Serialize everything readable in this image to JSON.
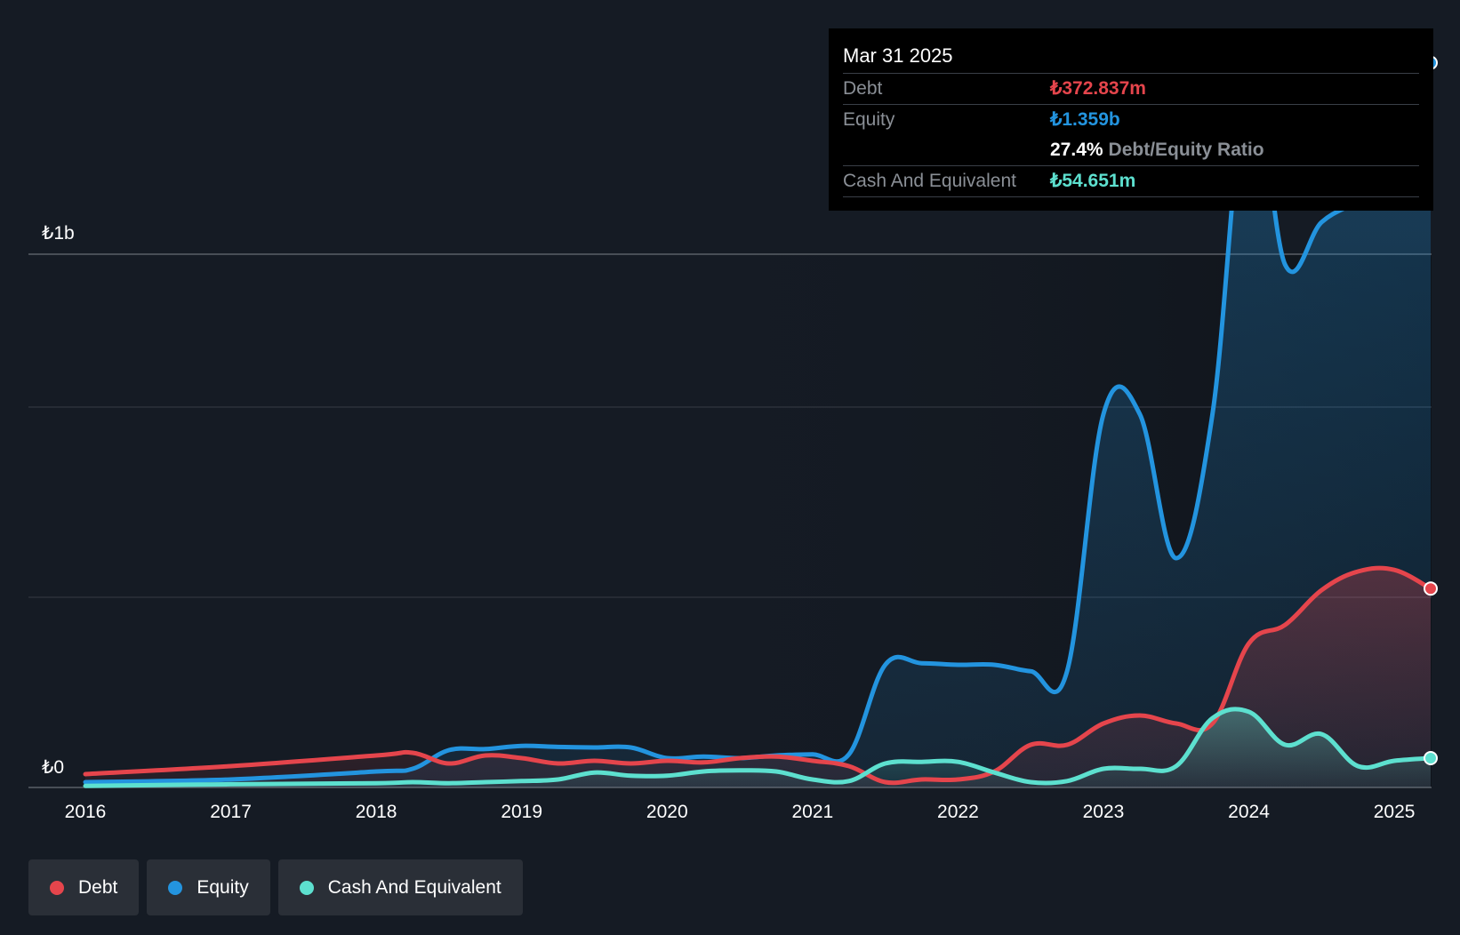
{
  "tooltip": {
    "date": "Mar 31 2025",
    "debt_label": "Debt",
    "debt_value": "₺372.837m",
    "equity_label": "Equity",
    "equity_value": "₺1.359b",
    "ratio_value": "27.4%",
    "ratio_label": "Debt/Equity Ratio",
    "cash_label": "Cash And Equivalent",
    "cash_value": "₺54.651m"
  },
  "legend": [
    {
      "label": "Debt",
      "color": "#e5454c"
    },
    {
      "label": "Equity",
      "color": "#2394df"
    },
    {
      "label": "Cash And Equivalent",
      "color": "#5de0cf"
    }
  ],
  "colors": {
    "debt": "#e5454c",
    "equity": "#2394df",
    "cash": "#5de0cf",
    "background": "#151b24"
  },
  "chart_data": {
    "type": "area",
    "title": "",
    "xlabel": "",
    "ylabel": "",
    "y_tick_labels": [
      "₺0",
      "₺1b"
    ],
    "ylim": [
      0,
      1.4
    ],
    "xlim": [
      2016.0,
      2025.25
    ],
    "x_tick_labels": [
      "2016",
      "2017",
      "2018",
      "2019",
      "2020",
      "2021",
      "2022",
      "2023",
      "2024",
      "2025"
    ],
    "grid": true,
    "legend_position": "bottom-left",
    "units": "billion ₺",
    "series": [
      {
        "name": "Debt",
        "x": [
          2016.0,
          2017.0,
          2018.0,
          2018.25,
          2018.5,
          2018.75,
          2019.0,
          2019.25,
          2019.5,
          2019.75,
          2020.0,
          2020.25,
          2020.5,
          2020.75,
          2021.0,
          2021.25,
          2021.5,
          2021.75,
          2022.0,
          2022.25,
          2022.5,
          2022.75,
          2023.0,
          2023.25,
          2023.5,
          2023.75,
          2024.0,
          2024.25,
          2024.5,
          2024.75,
          2025.0,
          2025.25
        ],
        "values": [
          0.025,
          0.04,
          0.06,
          0.065,
          0.045,
          0.06,
          0.055,
          0.045,
          0.05,
          0.045,
          0.05,
          0.047,
          0.055,
          0.058,
          0.05,
          0.04,
          0.01,
          0.015,
          0.015,
          0.03,
          0.08,
          0.08,
          0.12,
          0.135,
          0.12,
          0.12,
          0.27,
          0.305,
          0.37,
          0.405,
          0.408,
          0.373
        ]
      },
      {
        "name": "Equity",
        "x": [
          2016.0,
          2017.0,
          2018.0,
          2018.25,
          2018.5,
          2018.75,
          2019.0,
          2019.25,
          2019.5,
          2019.75,
          2020.0,
          2020.25,
          2020.5,
          2020.75,
          2021.0,
          2021.25,
          2021.5,
          2021.75,
          2022.0,
          2022.25,
          2022.5,
          2022.75,
          2023.0,
          2023.25,
          2023.5,
          2023.75,
          2024.0,
          2024.25,
          2024.5,
          2024.75,
          2025.0,
          2025.25
        ],
        "values": [
          0.01,
          0.015,
          0.03,
          0.035,
          0.07,
          0.072,
          0.078,
          0.076,
          0.075,
          0.075,
          0.055,
          0.058,
          0.055,
          0.06,
          0.062,
          0.062,
          0.23,
          0.233,
          0.23,
          0.23,
          0.218,
          0.218,
          0.7,
          0.7,
          0.43,
          0.7,
          1.34,
          0.98,
          1.06,
          1.1,
          1.15,
          1.359
        ]
      },
      {
        "name": "Cash And Equivalent",
        "x": [
          2016.0,
          2017.0,
          2018.0,
          2018.25,
          2018.5,
          2018.75,
          2019.0,
          2019.25,
          2019.5,
          2019.75,
          2020.0,
          2020.25,
          2020.5,
          2020.75,
          2021.0,
          2021.25,
          2021.5,
          2021.75,
          2022.0,
          2022.25,
          2022.5,
          2022.75,
          2023.0,
          2023.25,
          2023.5,
          2023.75,
          2024.0,
          2024.25,
          2024.5,
          2024.75,
          2025.0,
          2025.25
        ],
        "values": [
          0.003,
          0.006,
          0.008,
          0.01,
          0.008,
          0.01,
          0.012,
          0.015,
          0.028,
          0.022,
          0.022,
          0.03,
          0.032,
          0.03,
          0.015,
          0.012,
          0.045,
          0.048,
          0.048,
          0.028,
          0.01,
          0.012,
          0.035,
          0.035,
          0.04,
          0.13,
          0.142,
          0.08,
          0.1,
          0.04,
          0.05,
          0.055
        ]
      }
    ]
  }
}
